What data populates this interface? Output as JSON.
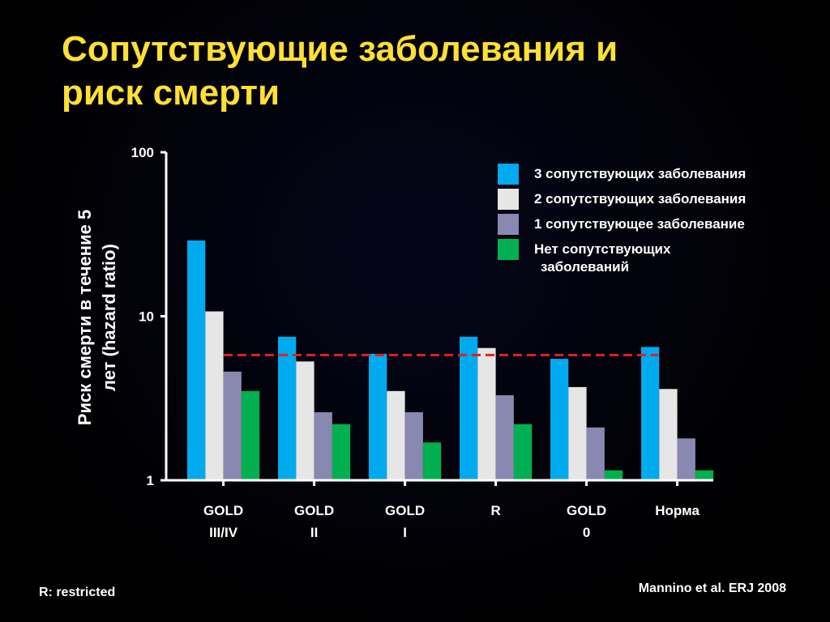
{
  "title": {
    "line1": "Сопутствующие заболевания и",
    "line2": "риск смерти"
  },
  "footnote_left": "R:  restricted",
  "footnote_right": "Mannino et al. ERJ 2008",
  "colors": {
    "series_3": "#00aaee",
    "series_2": "#e6e6e6",
    "series_1": "#8888b0",
    "series_0": "#00b050",
    "reference_line": "#dd2222",
    "axis": "#ffffff"
  },
  "chart_data": {
    "type": "bar",
    "scale": "log",
    "ylim": [
      1,
      100
    ],
    "yticks": [
      "1",
      "10",
      "100"
    ],
    "ylabel_line1": "Риск смерти в течение 5",
    "ylabel_line2": "лет  (hazard ratio)",
    "categories": [
      [
        "GOLD",
        "III/IV"
      ],
      [
        "GOLD",
        "II"
      ],
      [
        "GOLD",
        "I"
      ],
      [
        "R",
        ""
      ],
      [
        "GOLD",
        "0"
      ],
      [
        "Норма",
        ""
      ]
    ],
    "series": [
      {
        "name": "3 сопутствующих заболевания",
        "name_line2": "",
        "color": "#00aaee",
        "values": [
          29,
          7.5,
          5.9,
          7.5,
          5.5,
          6.5
        ]
      },
      {
        "name": "2 сопутствующих заболевания",
        "name_line2": "",
        "color": "#e6e6e6",
        "values": [
          10.7,
          5.3,
          3.5,
          6.4,
          3.7,
          3.6
        ]
      },
      {
        "name": "1 сопутствующее заболевание",
        "name_line2": "",
        "color": "#8888b0",
        "values": [
          4.6,
          2.6,
          2.6,
          3.3,
          2.1,
          1.8
        ]
      },
      {
        "name": "Нет сопутствующих",
        "name_line2": "заболеваний",
        "color": "#00b050",
        "values": [
          3.5,
          2.2,
          1.7,
          2.2,
          1.15,
          1.15
        ]
      }
    ],
    "reference_line": 5.8,
    "grid": false,
    "legend_position": "top-right"
  }
}
